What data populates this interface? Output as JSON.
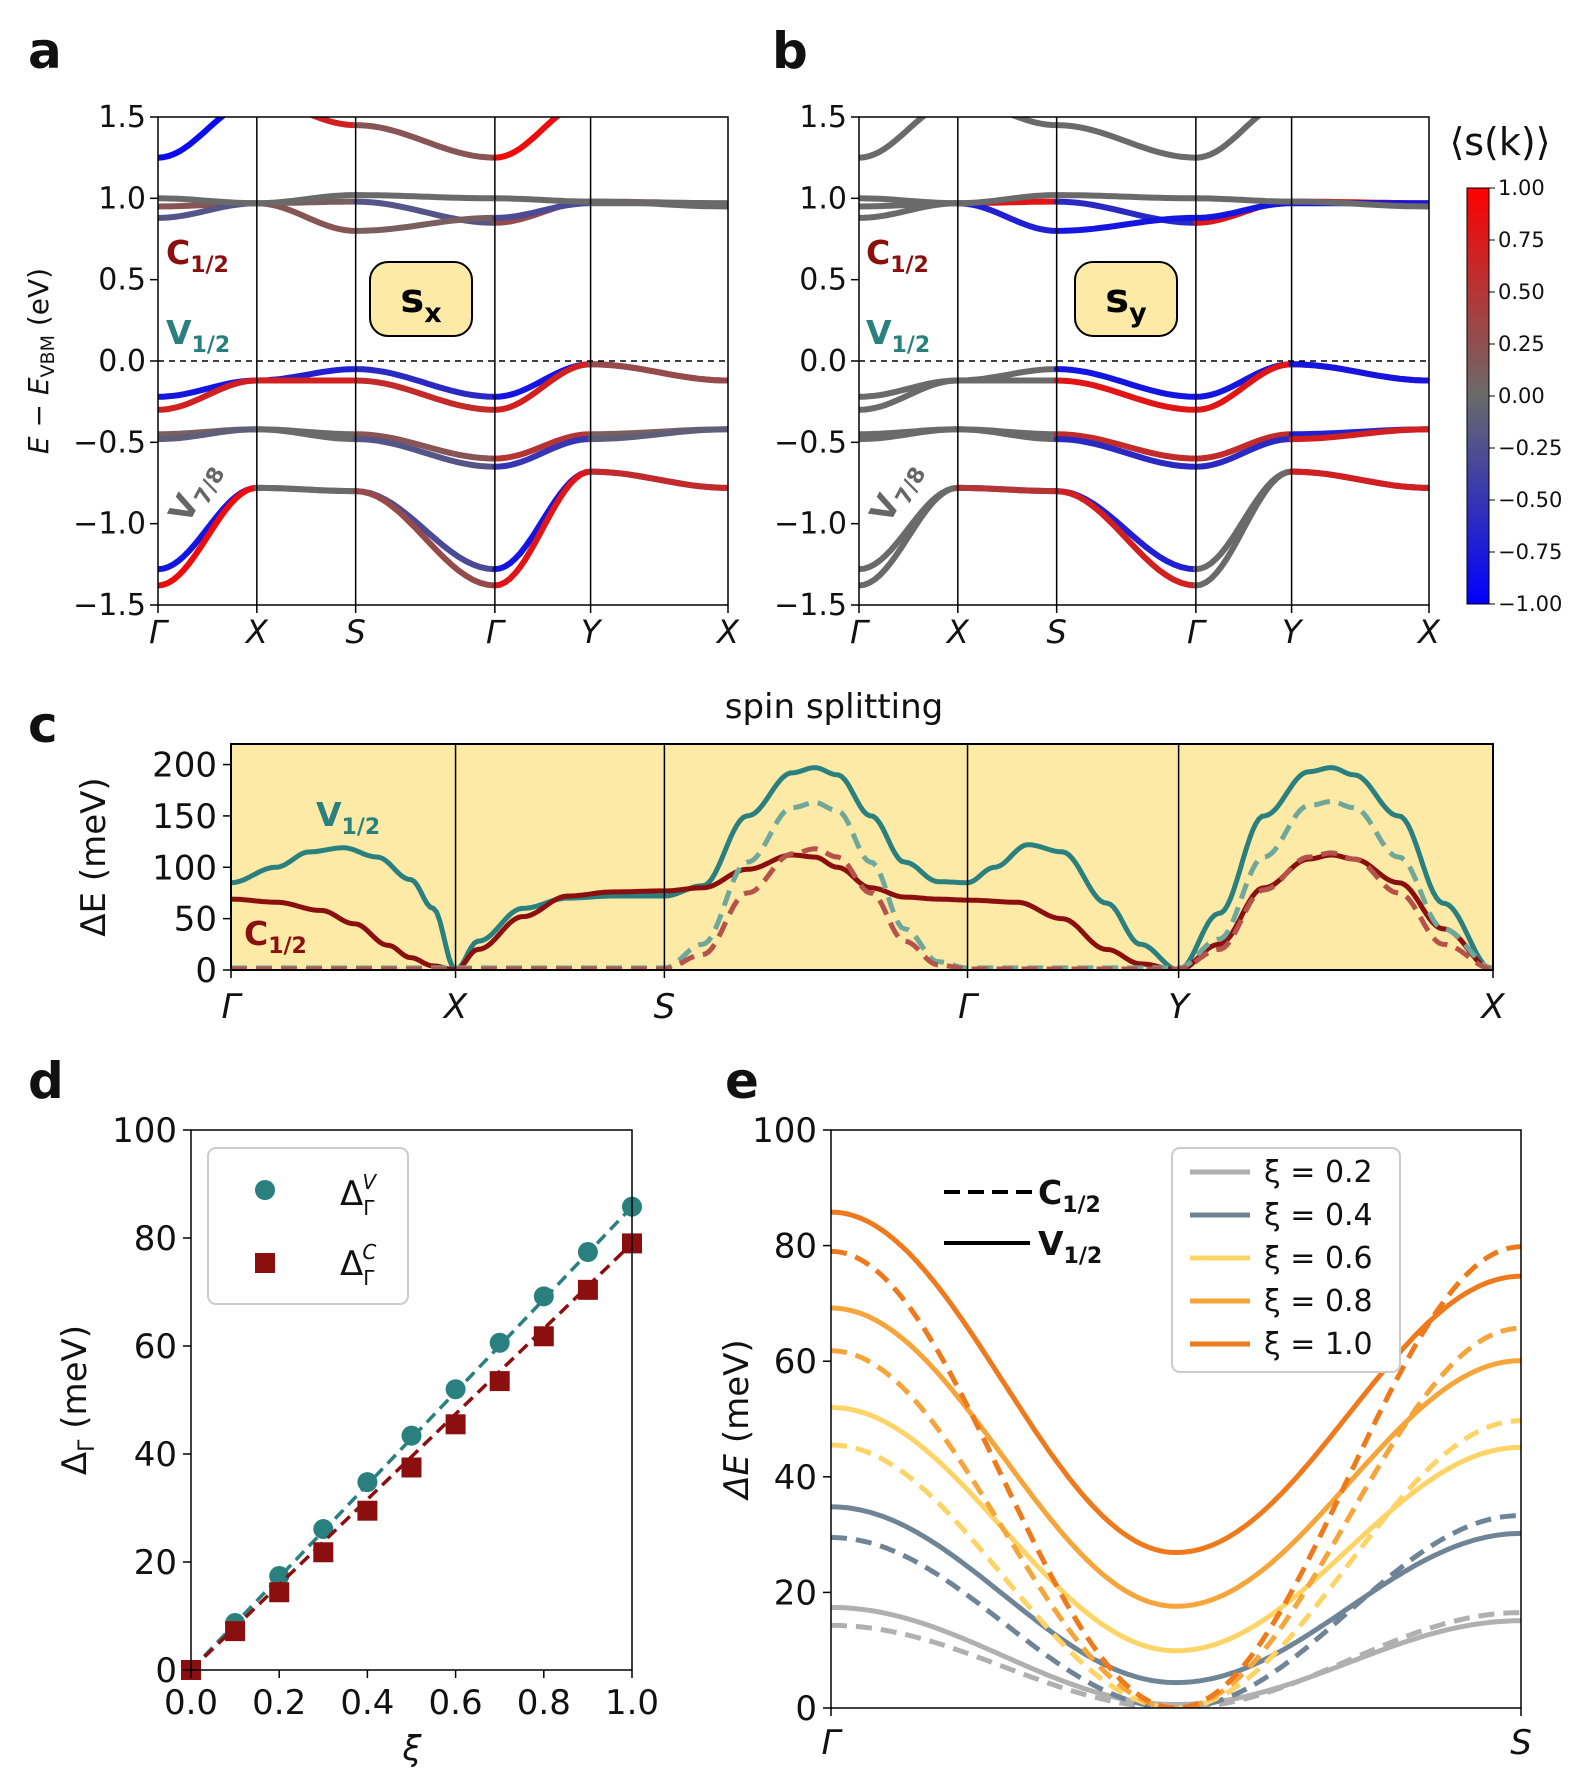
{
  "panel_letters": [
    "a",
    "b",
    "c",
    "d",
    "e"
  ],
  "colors": {
    "teal": "#2a7f7f",
    "dark_red": "#8b0f0f",
    "grey_band": "#666666",
    "panel_c_bg": "#fdeaa6",
    "label_box": "#fdeaa6",
    "cmap": [
      "#0000ff",
      "#666666",
      "#ff0000"
    ]
  },
  "chart_data": [
    {
      "panel": "a",
      "type": "line",
      "title": "",
      "ylabel_main": "E − E",
      "ylabel_sub": "VBM",
      "ylabel_unit": " (eV)",
      "ylim": [
        -1.5,
        1.5
      ],
      "yticks": [
        "1.5",
        "1.0",
        "0.5",
        "0.0",
        "−0.5",
        "−1.0",
        "−1.5"
      ],
      "kpath": [
        "Γ",
        "X",
        "S",
        "Γ",
        "Y",
        "X"
      ],
      "kpos": [
        0,
        0.766,
        1.532,
        2.611,
        3.353,
        4.418
      ],
      "spin_label": {
        "main": "s",
        "sub": "x"
      },
      "band_labels": {
        "c": {
          "main": "C",
          "sub": "1/2"
        },
        "v": {
          "main": "V",
          "sub": "1/2"
        },
        "v78": {
          "main": "V",
          "sub": "7/8"
        }
      }
    },
    {
      "panel": "b",
      "type": "line",
      "ylim": [
        -1.5,
        1.5
      ],
      "yticks": [
        "1.5",
        "1.0",
        "0.5",
        "0.0",
        "−0.5",
        "−1.0",
        "−1.5"
      ],
      "kpath": [
        "Γ",
        "X",
        "S",
        "Γ",
        "Y",
        "X"
      ],
      "spin_label": {
        "main": "s",
        "sub": "y"
      },
      "band_labels": {
        "c": {
          "main": "C",
          "sub": "1/2"
        },
        "v": {
          "main": "V",
          "sub": "1/2"
        },
        "v78": {
          "main": "V",
          "sub": "7/8"
        }
      },
      "colorbar": {
        "label": "⟨s(k)⟩",
        "range": [
          -1.0,
          1.0
        ],
        "ticks": [
          "1.00",
          "0.75",
          "0.50",
          "0.25",
          "0.00",
          "−0.25",
          "−0.50",
          "−0.75",
          "−1.00"
        ]
      }
    },
    {
      "panel": "c",
      "type": "line",
      "title": "spin splitting",
      "ylabel_main": "ΔE",
      "ylabel_unit": " (meV)",
      "ylim": [
        0,
        220
      ],
      "yticks": [
        "200",
        "150",
        "100",
        "50",
        "0"
      ],
      "ytick_values": [
        200,
        150,
        100,
        50,
        0
      ],
      "kpath": [
        "Γ",
        "X",
        "S",
        "Γ",
        "Y",
        "X"
      ],
      "kpos": [
        0,
        1.0,
        1.93,
        3.28,
        4.22,
        5.62
      ],
      "series": [
        {
          "name": "V1/2",
          "style": "solid",
          "color": "#2a7f7f",
          "x": [
            0,
            0.2,
            0.35,
            0.5,
            0.65,
            0.8,
            0.9,
            1.0,
            1.1,
            1.3,
            1.5,
            1.7,
            1.93,
            2.1,
            2.3,
            2.5,
            2.6,
            2.7,
            2.85,
            3.0,
            3.15,
            3.28,
            3.4,
            3.55,
            3.7,
            3.9,
            4.05,
            4.22,
            4.4,
            4.6,
            4.8,
            4.9,
            5.0,
            5.2,
            5.4,
            5.62
          ],
          "y": [
            85,
            100,
            115,
            119,
            110,
            88,
            60,
            0,
            28,
            60,
            70,
            72,
            72,
            82,
            150,
            192,
            197,
            190,
            150,
            105,
            86,
            85,
            100,
            122,
            115,
            65,
            25,
            0,
            55,
            150,
            193,
            197,
            190,
            150,
            65,
            0
          ]
        },
        {
          "name": "C1/2",
          "style": "solid",
          "color": "#8b0f0f",
          "x": [
            0,
            0.2,
            0.4,
            0.55,
            0.7,
            0.8,
            0.9,
            1.0,
            1.1,
            1.3,
            1.5,
            1.7,
            1.93,
            2.1,
            2.3,
            2.5,
            2.6,
            2.7,
            2.85,
            3.0,
            3.15,
            3.28,
            3.5,
            3.7,
            3.9,
            4.05,
            4.22,
            4.4,
            4.6,
            4.8,
            4.9,
            5.0,
            5.2,
            5.4,
            5.62
          ],
          "y": [
            69,
            66,
            58,
            45,
            24,
            12,
            4,
            0,
            20,
            52,
            72,
            76,
            77,
            80,
            98,
            112,
            110,
            100,
            80,
            71,
            69,
            68,
            66,
            50,
            20,
            6,
            0,
            25,
            80,
            108,
            112,
            108,
            85,
            40,
            0
          ]
        },
        {
          "name": "V1/2 (ξ dashed)",
          "style": "dashed",
          "color": "#6fa89a",
          "x": [
            0,
            0.5,
            1.0,
            1.5,
            1.93,
            2.1,
            2.3,
            2.5,
            2.6,
            2.7,
            2.85,
            3.0,
            3.15,
            3.28,
            3.8,
            4.22,
            4.4,
            4.6,
            4.8,
            4.9,
            5.0,
            5.2,
            5.4,
            5.62
          ],
          "y": [
            2,
            2,
            2,
            2,
            2,
            25,
            105,
            158,
            163,
            155,
            105,
            40,
            8,
            2,
            2,
            2,
            30,
            110,
            160,
            164,
            158,
            110,
            40,
            2
          ]
        },
        {
          "name": "C1/2 (ξ dashed)",
          "style": "dashed",
          "color": "#b5534a",
          "x": [
            0,
            0.5,
            1.0,
            1.5,
            1.93,
            2.1,
            2.3,
            2.5,
            2.6,
            2.7,
            2.85,
            3.0,
            3.15,
            3.28,
            3.8,
            4.22,
            4.4,
            4.6,
            4.8,
            4.9,
            5.0,
            5.2,
            5.4,
            5.62
          ],
          "y": [
            1,
            1,
            1,
            1,
            1,
            15,
            75,
            113,
            118,
            110,
            75,
            28,
            5,
            1,
            1,
            1,
            20,
            78,
            110,
            114,
            108,
            75,
            25,
            1
          ]
        }
      ],
      "labels": {
        "v": {
          "main": "V",
          "sub": "1/2"
        },
        "c": {
          "main": "C",
          "sub": "1/2"
        }
      }
    },
    {
      "panel": "d",
      "type": "scatter",
      "xlabel": "ξ",
      "ylabel_main": "Δ",
      "ylabel_sub": "Γ",
      "ylabel_unit": " (meV)",
      "xlim": [
        0,
        1.0
      ],
      "ylim": [
        0,
        100
      ],
      "xticks": [
        "0.0",
        "0.2",
        "0.4",
        "0.6",
        "0.8",
        "1.0"
      ],
      "yticks": [
        "100",
        "80",
        "60",
        "40",
        "20",
        "0"
      ],
      "x": [
        0.0,
        0.1,
        0.2,
        0.3,
        0.4,
        0.5,
        0.6,
        0.7,
        0.8,
        0.9,
        1.0
      ],
      "series": [
        {
          "name": "Δ_Γ^V",
          "legend_main": "Δ",
          "legend_sub": "Γ",
          "legend_sup": "V",
          "marker": "circle",
          "color": "#2a7f7f",
          "values": [
            0,
            8.7,
            17.4,
            26.1,
            34.8,
            43.4,
            52.0,
            60.6,
            69.2,
            77.4,
            85.8
          ],
          "fit": [
            0,
            85.8
          ]
        },
        {
          "name": "Δ_Γ^C",
          "legend_main": "Δ",
          "legend_sub": "Γ",
          "legend_sup": "C",
          "marker": "square",
          "color": "#8b0f0f",
          "values": [
            0,
            7.2,
            14.4,
            21.8,
            29.5,
            37.5,
            45.5,
            53.5,
            61.8,
            70.4,
            79.0
          ],
          "fit": [
            0,
            79.0
          ]
        }
      ]
    },
    {
      "panel": "e",
      "type": "line",
      "ylabel_main": "ΔE",
      "ylabel_unit": " (meV)",
      "xlim": [
        0,
        1
      ],
      "ylim": [
        0,
        100
      ],
      "xticks": [
        "Γ",
        "S"
      ],
      "yticks": [
        "100",
        "80",
        "60",
        "40",
        "20",
        "0"
      ],
      "style_legend": [
        {
          "label_main": "C",
          "label_sub": "1/2",
          "style": "dashed"
        },
        {
          "label_main": "V",
          "label_sub": "1/2",
          "style": "solid"
        }
      ],
      "legend": [
        "ξ = 0.2",
        "ξ = 0.4",
        "ξ = 0.6",
        "ξ = 0.8",
        "ξ = 1.0"
      ],
      "series": [
        {
          "name": "ξ = 0.2",
          "color": "#b0b0b0",
          "V": {
            "start": 17.4,
            "end": 15.1,
            "min": 0.6
          },
          "C": {
            "start": 14.3,
            "end": 16.5,
            "cross": 0.5
          }
        },
        {
          "name": "ξ = 0.4",
          "color": "#6f8597",
          "V": {
            "start": 34.8,
            "end": 30.2,
            "min": 4.4
          },
          "C": {
            "start": 29.5,
            "end": 33.3,
            "cross": 0.5
          }
        },
        {
          "name": "ξ = 0.6",
          "color": "#fdd465",
          "V": {
            "start": 52.0,
            "end": 45.1,
            "min": 9.9
          },
          "C": {
            "start": 45.5,
            "end": 49.7,
            "cross": 0.5
          }
        },
        {
          "name": "ξ = 0.8",
          "color": "#f6a53a",
          "V": {
            "start": 69.2,
            "end": 60.1,
            "min": 17.6
          },
          "C": {
            "start": 61.8,
            "end": 65.7,
            "cross": 0.5
          }
        },
        {
          "name": "ξ = 1.0",
          "color": "#ee7a1c",
          "V": {
            "start": 85.8,
            "end": 74.7,
            "min": 26.9
          },
          "C": {
            "start": 79.0,
            "end": 79.8,
            "cross": 0.5
          }
        }
      ]
    }
  ]
}
